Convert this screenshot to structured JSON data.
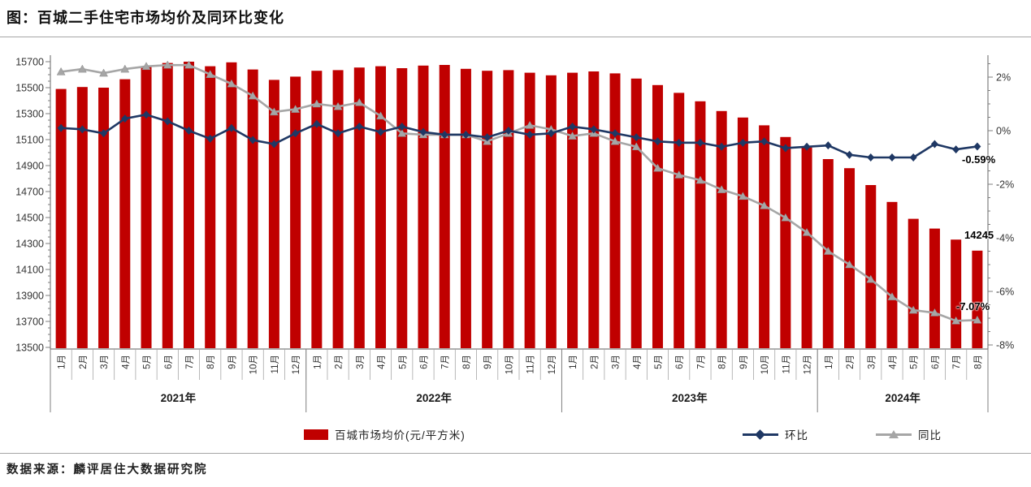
{
  "title": "图：百城二手住宅市场均价及同环比变化",
  "source": "数据来源：麟评居住大数据研究院",
  "legend": [
    {
      "key": "bar",
      "label": "百城市场均价(元/平方米)"
    },
    {
      "key": "mom",
      "label": "环比"
    },
    {
      "key": "yoy",
      "label": "同比"
    }
  ],
  "annotations": {
    "last_price": "14245",
    "last_mom": "-0.59%",
    "last_yoy": "-7.07%"
  },
  "colors": {
    "bar": "#C00000",
    "mom": "#1F3864",
    "yoy": "#A6A6A6",
    "axis": "#7f7f7f",
    "tick_text": "#333333"
  },
  "chart_data": {
    "type": "combo",
    "title": "图：百城二手住宅市场均价及同环比变化",
    "year_groups": [
      {
        "label": "2021年",
        "months": 12
      },
      {
        "label": "2022年",
        "months": 12
      },
      {
        "label": "2023年",
        "months": 12
      },
      {
        "label": "2024年",
        "months": 8
      }
    ],
    "categories": [
      "1月",
      "2月",
      "3月",
      "4月",
      "5月",
      "6月",
      "7月",
      "8月",
      "9月",
      "10月",
      "11月",
      "12月",
      "1月",
      "2月",
      "3月",
      "4月",
      "5月",
      "6月",
      "7月",
      "8月",
      "9月",
      "10月",
      "11月",
      "12月",
      "1月",
      "2月",
      "3月",
      "4月",
      "5月",
      "6月",
      "7月",
      "8月",
      "9月",
      "10月",
      "11月",
      "12月",
      "1月",
      "2月",
      "3月",
      "4月",
      "5月",
      "6月",
      "7月",
      "8月"
    ],
    "series": [
      {
        "name": "百城市场均价(元/平方米)",
        "type": "bar",
        "axis": "left",
        "color": "#C00000",
        "values": [
          15490,
          15505,
          15500,
          15565,
          15660,
          15690,
          15700,
          15665,
          15695,
          15640,
          15560,
          15585,
          15630,
          15635,
          15655,
          15665,
          15650,
          15670,
          15675,
          15645,
          15630,
          15635,
          15615,
          15595,
          15615,
          15625,
          15610,
          15570,
          15520,
          15460,
          15395,
          15320,
          15270,
          15210,
          15120,
          15040,
          14950,
          14880,
          14750,
          14620,
          14490,
          14415,
          14330,
          14245
        ]
      },
      {
        "name": "环比",
        "type": "line",
        "axis": "right",
        "color": "#1F3864",
        "marker": "diamond",
        "values": [
          0.1,
          0.05,
          -0.1,
          0.45,
          0.6,
          0.35,
          0.0,
          -0.3,
          0.1,
          -0.35,
          -0.5,
          -0.1,
          0.25,
          -0.1,
          0.15,
          -0.05,
          0.15,
          -0.05,
          -0.15,
          -0.15,
          -0.25,
          0.0,
          -0.15,
          -0.1,
          0.15,
          0.05,
          -0.1,
          -0.25,
          -0.4,
          -0.45,
          -0.45,
          -0.6,
          -0.45,
          -0.4,
          -0.65,
          -0.6,
          -0.55,
          -0.9,
          -1.0,
          -1.0,
          -1.0,
          -0.5,
          -0.7,
          -0.59
        ]
      },
      {
        "name": "同比",
        "type": "line",
        "axis": "right",
        "color": "#A6A6A6",
        "marker": "triangle",
        "values": [
          2.2,
          2.3,
          2.15,
          2.3,
          2.4,
          2.45,
          2.45,
          2.1,
          1.75,
          1.3,
          0.7,
          0.8,
          1.0,
          0.9,
          1.05,
          0.55,
          -0.1,
          -0.15,
          -0.15,
          -0.15,
          -0.4,
          -0.1,
          0.2,
          0.05,
          -0.2,
          -0.1,
          -0.4,
          -0.6,
          -1.4,
          -1.65,
          -1.85,
          -2.2,
          -2.45,
          -2.8,
          -3.25,
          -3.8,
          -4.5,
          -5.0,
          -5.55,
          -6.2,
          -6.7,
          -6.8,
          -7.1,
          -7.07
        ]
      }
    ],
    "left_axis": {
      "min": 13500,
      "max": 15700,
      "step": 200,
      "minor_step": 50,
      "tick_labels": [
        "13500",
        "13700",
        "13900",
        "14100",
        "14300",
        "14500",
        "14700",
        "14900",
        "15100",
        "15300",
        "15500",
        "15700"
      ]
    },
    "right_axis": {
      "min": -8,
      "max": 2,
      "step": 2,
      "minor_step": 0.5,
      "unit": "%",
      "tick_labels": [
        "-8%",
        "-6%",
        "-4%",
        "-2%",
        "0%",
        "2%"
      ]
    },
    "grid": false,
    "legend_position": "bottom"
  }
}
